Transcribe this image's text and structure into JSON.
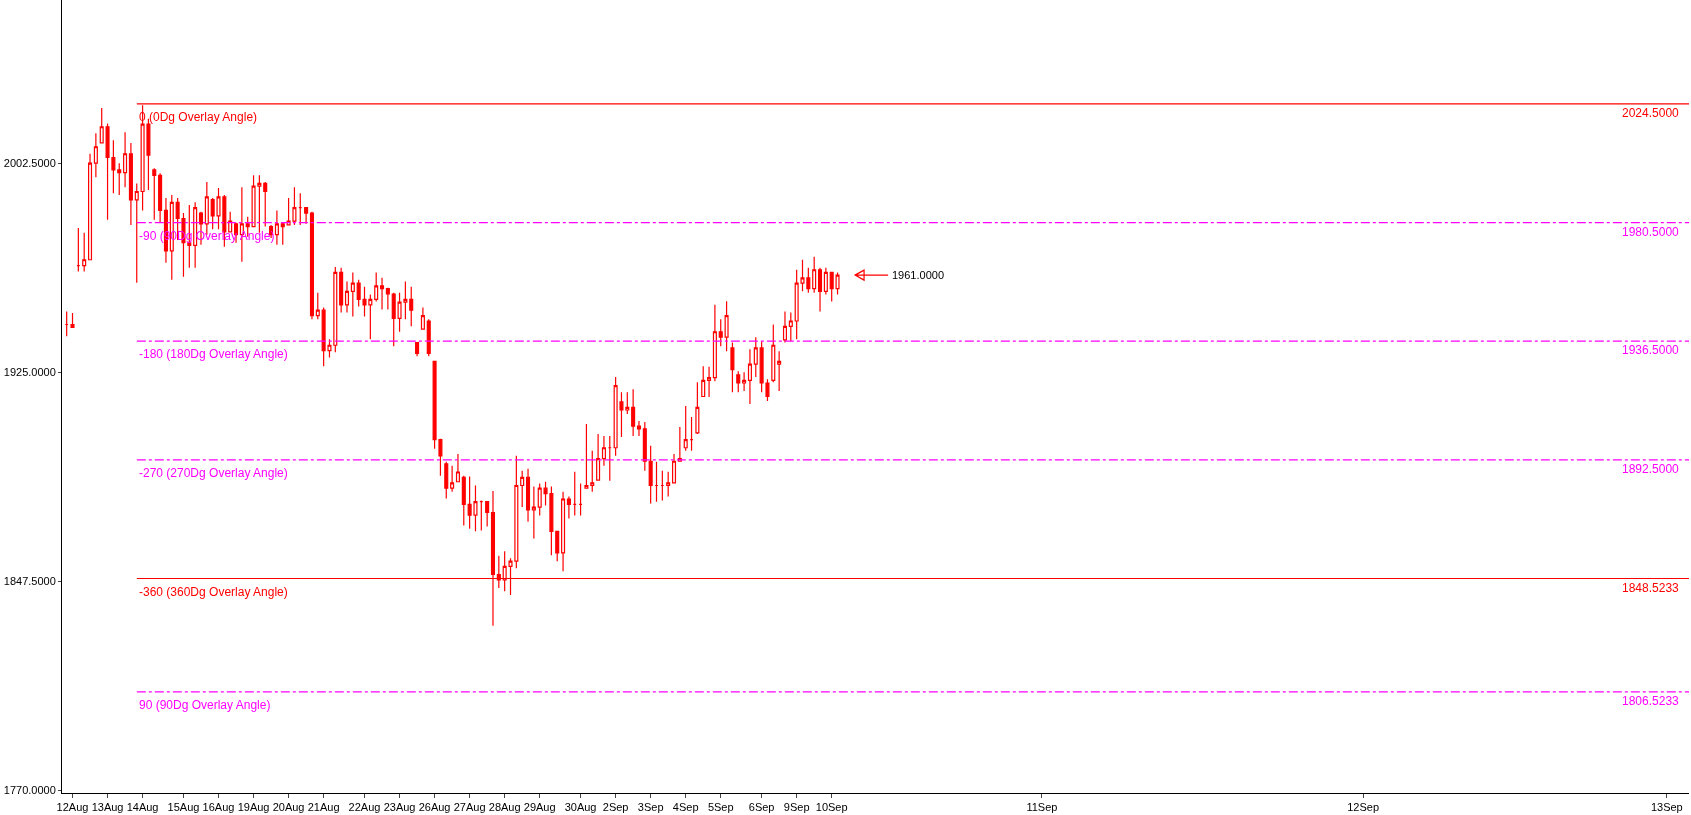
{
  "chart_data": {
    "type": "candlestick",
    "color": "#ff0000",
    "categories": [
      null,
      "12Aug",
      null,
      null,
      null,
      null,
      null,
      "13Aug",
      null,
      null,
      null,
      null,
      null,
      "14Aug",
      null,
      null,
      null,
      null,
      null,
      null,
      "15Aug",
      null,
      null,
      null,
      null,
      null,
      "16Aug",
      null,
      null,
      null,
      null,
      null,
      "19Aug",
      null,
      null,
      null,
      null,
      null,
      "20Aug",
      null,
      null,
      null,
      null,
      null,
      "21Aug",
      null,
      null,
      null,
      null,
      null,
      null,
      "22Aug",
      null,
      null,
      null,
      null,
      null,
      "23Aug",
      null,
      null,
      null,
      null,
      null,
      "26Aug",
      null,
      null,
      null,
      null,
      null,
      "27Aug",
      null,
      null,
      null,
      null,
      null,
      "28Aug",
      null,
      null,
      null,
      null,
      null,
      "29Aug",
      null,
      null,
      null,
      null,
      null,
      null,
      "30Aug",
      null,
      null,
      null,
      null,
      null,
      "2Sep",
      null,
      null,
      null,
      null,
      null,
      "3Sep",
      null,
      null,
      null,
      null,
      null,
      "4Sep",
      null,
      null,
      null,
      null,
      null,
      "5Sep",
      null,
      null,
      null,
      null,
      null,
      null,
      "6Sep",
      null,
      null,
      null,
      null,
      null,
      "9Sep",
      null,
      null,
      null,
      null,
      null,
      "10Sep",
      null,
      null,
      null,
      null,
      null,
      null,
      null,
      null,
      null,
      null,
      null,
      null,
      null,
      null,
      null,
      null,
      null,
      null,
      null,
      null,
      null,
      null,
      null,
      null,
      null,
      null,
      null,
      null,
      null,
      null,
      null,
      null,
      null,
      null,
      null,
      "11Sep",
      null,
      null,
      null,
      null,
      null,
      null,
      null,
      null,
      null,
      null,
      null,
      null,
      null,
      null,
      null,
      null,
      null,
      null,
      null,
      null,
      null,
      null,
      null,
      null,
      null,
      null,
      null,
      null,
      null,
      null,
      null,
      null,
      null,
      null,
      null,
      null,
      null,
      null,
      null,
      null,
      null,
      null,
      null,
      null,
      null,
      null,
      null,
      null,
      null,
      null,
      null,
      null,
      null,
      null,
      "12Sep",
      null,
      null,
      null,
      null,
      null,
      null,
      null,
      null,
      null,
      null,
      null,
      null,
      null,
      null,
      null,
      null,
      null,
      null,
      null,
      null,
      null,
      null,
      null,
      null,
      null,
      null,
      null,
      null,
      null,
      null,
      null,
      null,
      null,
      null,
      null,
      null,
      null,
      null,
      null,
      null,
      null,
      null,
      null,
      null,
      null,
      null,
      null,
      null,
      null,
      null,
      null,
      "13Sep",
      null,
      null,
      null
    ],
    "ohlc": [
      [
        1942.7,
        1947.5,
        1938.3,
        1942.7
      ],
      [
        1942.7,
        1947,
        1941.6,
        1941.6
      ],
      [
        1964.5,
        1978.5,
        1962.3,
        1964.5
      ],
      [
        1964.5,
        1976.7,
        1962.3,
        1966.7
      ],
      [
        1966.7,
        2006,
        1966.7,
        2002.5
      ],
      [
        2002.5,
        2013.6,
        1997.3,
        2008.6
      ],
      [
        2010,
        2023,
        2009.9,
        2016
      ],
      [
        2016,
        2017.2,
        1981.5,
        2004.6
      ],
      [
        2004.6,
        2011,
        1991.4,
        2000
      ],
      [
        2000,
        2002.5,
        1990.7,
        1999
      ],
      [
        1999,
        2014,
        1993.6,
        2006
      ],
      [
        2006,
        2010,
        1979.6,
        1988.9
      ],
      [
        1988.9,
        1995,
        1958.2,
        1992
      ],
      [
        1992,
        2024,
        1985,
        2017
      ],
      [
        2017,
        2019,
        1992.6,
        2005.5
      ],
      [
        2000,
        2000.6,
        1981.5,
        1998
      ],
      [
        1998,
        1998.8,
        1980.4,
        1985
      ],
      [
        1985,
        1989.6,
        1965.6,
        1970
      ],
      [
        1970,
        1990.7,
        1959.3,
        1988
      ],
      [
        1988,
        1989.6,
        1974,
        1982
      ],
      [
        1982,
        1984,
        1960.4,
        1973
      ],
      [
        1973,
        1987,
        1963.7,
        1972
      ],
      [
        1972,
        1988,
        1963.7,
        1986
      ],
      [
        1984,
        1984.5,
        1972.3,
        1980
      ],
      [
        1980,
        1995.5,
        1976,
        1990
      ],
      [
        1989,
        1989.6,
        1978,
        1983
      ],
      [
        1983,
        1993.3,
        1978,
        1990
      ],
      [
        1990,
        1990.7,
        1971.5,
        1977
      ],
      [
        1977,
        1984.5,
        1977,
        1981
      ],
      [
        1980,
        1980.4,
        1973,
        1976
      ],
      [
        1976,
        1993.6,
        1966,
        1980
      ],
      [
        1980,
        1982.6,
        1975.2,
        1979
      ],
      [
        1979,
        1998,
        1979,
        1994
      ],
      [
        1994,
        1998,
        1976.7,
        1995
      ],
      [
        1995,
        1995.5,
        1979,
        1992
      ],
      [
        1979,
        1979.6,
        1974.8,
        1976
      ],
      [
        1976,
        1985,
        1972.3,
        1980
      ],
      [
        1980,
        1980.7,
        1972.3,
        1979
      ],
      [
        1979.6,
        1989.6,
        1979.6,
        1981
      ],
      [
        1981,
        1993.6,
        1979.6,
        1986
      ],
      [
        1986,
        1991.4,
        1979.6,
        1986
      ],
      [
        1986,
        1986,
        1980,
        1984
      ],
      [
        1984,
        1984.5,
        1944.6,
        1946
      ],
      [
        1946,
        1954.5,
        1944.6,
        1948
      ],
      [
        1948,
        1949,
        1927.2,
        1933
      ],
      [
        1933,
        1937.2,
        1930.5,
        1935
      ],
      [
        1935,
        1964,
        1932.4,
        1962
      ],
      [
        1962,
        1963.7,
        1947.1,
        1950
      ],
      [
        1950,
        1958.6,
        1947.1,
        1955
      ],
      [
        1955,
        1962,
        1945.7,
        1958
      ],
      [
        1958,
        1959.3,
        1949.4,
        1952
      ],
      [
        1952,
        1956.7,
        1945.7,
        1950
      ],
      [
        1950,
        1953.8,
        1937.2,
        1952
      ],
      [
        1952,
        1962,
        1951.2,
        1957
      ],
      [
        1957,
        1960,
        1948.3,
        1956
      ],
      [
        1956,
        1956.3,
        1948.3,
        1954
      ],
      [
        1954,
        1954.5,
        1934.6,
        1945
      ],
      [
        1945,
        1954.5,
        1940,
        1951
      ],
      [
        1951,
        1958.6,
        1944.6,
        1952
      ],
      [
        1952,
        1956.7,
        1942,
        1948
      ],
      [
        1936,
        1936,
        1930.9,
        1932
      ],
      [
        1941,
        1949,
        1941,
        1946
      ],
      [
        1944,
        1944.6,
        1930.9,
        1932
      ],
      [
        1929,
        1929,
        1896.6,
        1900
      ],
      [
        1900,
        1900.3,
        1886.6,
        1894
      ],
      [
        1891,
        1891.8,
        1878.2,
        1882
      ],
      [
        1882,
        1890.3,
        1880.7,
        1884
      ],
      [
        1884.4,
        1894.7,
        1884.4,
        1888
      ],
      [
        1886,
        1886.6,
        1868.2,
        1876
      ],
      [
        1876,
        1886.3,
        1867,
        1872
      ],
      [
        1872,
        1883,
        1866,
        1877
      ],
      [
        1877,
        1877.4,
        1866.3,
        1877
      ],
      [
        1877,
        1877,
        1867.8,
        1873
      ],
      [
        1873,
        1881,
        1831,
        1850
      ],
      [
        1850,
        1857,
        1845,
        1848
      ],
      [
        1848,
        1858.6,
        1843.8,
        1853
      ],
      [
        1853,
        1856,
        1842.4,
        1855
      ],
      [
        1855,
        1894,
        1852.3,
        1883
      ],
      [
        1883,
        1888.5,
        1875,
        1886
      ],
      [
        1886,
        1889.2,
        1869.6,
        1874
      ],
      [
        1874,
        1882.6,
        1863.4,
        1875
      ],
      [
        1875,
        1883.7,
        1871.9,
        1882
      ],
      [
        1882,
        1884.4,
        1875.6,
        1880
      ],
      [
        1880,
        1882.6,
        1857.1,
        1866
      ],
      [
        1866,
        1866,
        1854.9,
        1858
      ],
      [
        1858,
        1880.7,
        1851.2,
        1878
      ],
      [
        1878,
        1878.9,
        1870.8,
        1876
      ],
      [
        1876,
        1888.1,
        1871.9,
        1876
      ],
      [
        1876,
        1883.7,
        1871.9,
        1876
      ],
      [
        1882,
        1905.8,
        1881.8,
        1883
      ],
      [
        1883,
        1895.9,
        1880.7,
        1884
      ],
      [
        1885,
        1902.1,
        1884.8,
        1893
      ],
      [
        1893,
        1901.4,
        1890.3,
        1897
      ],
      [
        1897,
        1901.4,
        1884.8,
        1897
      ],
      [
        1897,
        1923.2,
        1894,
        1920
      ],
      [
        1914,
        1917.6,
        1901,
        1911
      ],
      [
        1911,
        1917.6,
        1909.5,
        1912
      ],
      [
        1912,
        1918.7,
        1901.4,
        1905
      ],
      [
        1905,
        1906.9,
        1901.4,
        1904
      ],
      [
        1904,
        1906.5,
        1888.5,
        1892
      ],
      [
        1892,
        1897.7,
        1876.3,
        1883
      ],
      [
        1883,
        1891.8,
        1877,
        1883
      ],
      [
        1883,
        1888.5,
        1877.4,
        1883
      ],
      [
        1883,
        1888.1,
        1878.9,
        1884
      ],
      [
        1884,
        1894.7,
        1883.7,
        1892
      ],
      [
        1892,
        1904.7,
        1891.8,
        1893
      ],
      [
        1897,
        1912.5,
        1895.9,
        1900
      ],
      [
        1900,
        1908.4,
        1895.9,
        1900
      ],
      [
        1902.5,
        1921.3,
        1902.1,
        1912
      ],
      [
        1916,
        1927.2,
        1915.8,
        1922
      ],
      [
        1922,
        1927,
        1915.8,
        1923
      ],
      [
        1923,
        1950,
        1921.7,
        1940
      ],
      [
        1940,
        1944.6,
        1934.6,
        1938
      ],
      [
        1938,
        1951.3,
        1932.8,
        1946
      ],
      [
        1934,
        1936,
        1917.6,
        1926
      ],
      [
        1924,
        1925.4,
        1917.6,
        1921
      ],
      [
        1921,
        1925,
        1918,
        1922
      ],
      [
        1922,
        1933.5,
        1913.2,
        1928
      ],
      [
        1928,
        1938,
        1923.2,
        1934
      ],
      [
        1934,
        1936.5,
        1917.6,
        1921
      ],
      [
        1921,
        1922.4,
        1914.3,
        1916
      ],
      [
        1922,
        1942.7,
        1921.3,
        1935
      ],
      [
        1928,
        1932.8,
        1918,
        1929
      ],
      [
        1937,
        1947.5,
        1936,
        1942
      ],
      [
        1942,
        1947.1,
        1936.5,
        1944
      ],
      [
        1944,
        1963,
        1937.2,
        1958
      ],
      [
        1958,
        1966.7,
        1955,
        1960
      ],
      [
        1960,
        1963.7,
        1954.5,
        1956
      ],
      [
        1956,
        1967.8,
        1954.5,
        1963
      ],
      [
        1963,
        1963.7,
        1947.5,
        1955
      ],
      [
        1955,
        1963.7,
        1953.8,
        1962
      ],
      [
        1962,
        1962,
        1951.2,
        1956
      ],
      [
        1956,
        1962,
        1953.8,
        1961
      ],
      null,
      null,
      null,
      null,
      null,
      null,
      null,
      null,
      null,
      null,
      null,
      null,
      null,
      null,
      null,
      null,
      null,
      null,
      null,
      null,
      null,
      null,
      null,
      null,
      null,
      null,
      null,
      null,
      null,
      null,
      null,
      null,
      null,
      null,
      null,
      null,
      null,
      null,
      null,
      null,
      null,
      null,
      null,
      null,
      null,
      null,
      null,
      null,
      null,
      null,
      null,
      null,
      null,
      null,
      null,
      null,
      null,
      null,
      null,
      null,
      null,
      null,
      null,
      null,
      null,
      null,
      null,
      null,
      null,
      null,
      null,
      null,
      null,
      null,
      null,
      null,
      null,
      null,
      null,
      null,
      null,
      null,
      null,
      null,
      null,
      null,
      null,
      null,
      null,
      null,
      null,
      null,
      null,
      null,
      null,
      null,
      null,
      null,
      null,
      null,
      null,
      null,
      null,
      null,
      null,
      null,
      null,
      null,
      null,
      null,
      null,
      null,
      null,
      null,
      null,
      null,
      null,
      null,
      null,
      null,
      null,
      null,
      null,
      null,
      null,
      null,
      null,
      null,
      null,
      null,
      null,
      null,
      null,
      null,
      null,
      null,
      null,
      null,
      null,
      null,
      null,
      null,
      null,
      null,
      null
    ],
    "ylim": [
      1769,
      2063
    ],
    "yticks": [
      {
        "value": 1770,
        "label": "1770.0000"
      },
      {
        "value": 1847.5,
        "label": "1847.5000"
      },
      {
        "value": 1925,
        "label": "1925.0000"
      },
      {
        "value": 2002.5,
        "label": "2002.5000"
      }
    ],
    "ref_lines": [
      {
        "axis": "y",
        "value": 2024.5,
        "label": "0 (0Dg Overlay Angle)",
        "color": "#ff0000",
        "line_style": "solid"
      },
      {
        "axis": "y",
        "value": 1980.5,
        "label": "-90 (90Dg Overlay Angle)",
        "color": "#ff00ff",
        "line_style": "dashed"
      },
      {
        "axis": "y",
        "value": 1936.5,
        "label": "-180 (180Dg Overlay Angle)",
        "color": "#ff00ff",
        "line_style": "dashed"
      },
      {
        "axis": "y",
        "value": 1892.5,
        "label": "-270 (270Dg Overlay Angle)",
        "color": "#ff00ff",
        "line_style": "dashed"
      },
      {
        "axis": "y",
        "value": 1848.5233,
        "label": "-360 (360Dg Overlay Angle)",
        "color": "#ff0000",
        "line_style": "solid"
      },
      {
        "axis": "y",
        "value": 1806.5233,
        "label": "90 (90Dg Overlay Angle)",
        "color": "#ff00ff",
        "line_style": "dashed"
      }
    ],
    "annotations": [
      "1961.0000",
      {
        "text": "2024.5000",
        "y": 2024.5
      },
      {
        "text": "1980.5000",
        "y": 1980.5
      },
      {
        "text": "1936.5000",
        "y": 1936.5
      },
      {
        "text": "1892.5000",
        "y": 1892.5
      },
      {
        "text": "1848.5233",
        "y": 1848.5233
      },
      {
        "text": "1806.5233",
        "y": 1806.5233
      }
    ]
  }
}
